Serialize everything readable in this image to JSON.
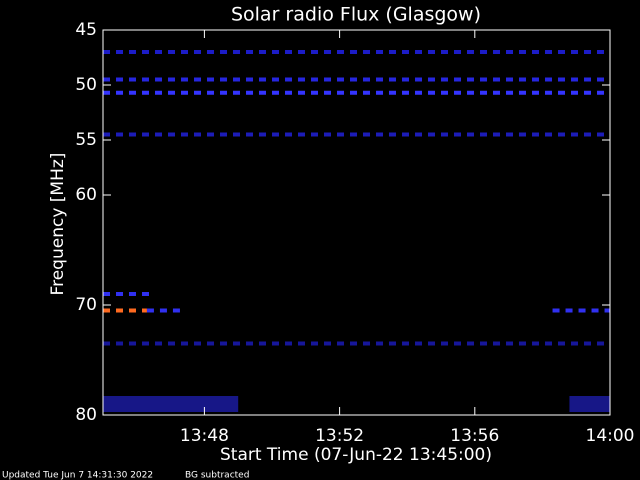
{
  "chart_data": {
    "type": "spectrogram",
    "title": "Solar radio Flux (Glasgow)",
    "x_label": "Start Time (07-Jun-22 13:45:00)",
    "y_label": "Frequency [MHz]",
    "xlim": [
      0,
      15
    ],
    "xticks": [
      {
        "value": 3,
        "label": "13:48"
      },
      {
        "value": 7,
        "label": "13:52"
      },
      {
        "value": 11,
        "label": "13:56"
      },
      {
        "value": 15,
        "label": "14:00"
      }
    ],
    "ylim": [
      80,
      45
    ],
    "yticks": [
      45,
      50,
      55,
      60,
      70,
      80
    ],
    "features": [
      {
        "y": 47,
        "x": [
          0,
          15
        ],
        "color": "#1c1cc8"
      },
      {
        "y": 49.5,
        "x": [
          0,
          15
        ],
        "color": "#2626e0"
      },
      {
        "y": 50.7,
        "x": [
          0,
          15
        ],
        "color": "#3434ff"
      },
      {
        "y": 54.5,
        "x": [
          0,
          15
        ],
        "color": "#1c1cb8"
      },
      {
        "y": 69,
        "x": [
          0,
          1.5
        ],
        "color": "#3030f0"
      },
      {
        "y": 70.5,
        "x": [
          0,
          1.3
        ],
        "color": "#ff6a20"
      },
      {
        "y": 70.5,
        "x": [
          1.3,
          2.3
        ],
        "color": "#3030f0"
      },
      {
        "y": 70.5,
        "x": [
          13.3,
          15
        ],
        "color": "#3030f0"
      },
      {
        "y": 73.5,
        "x": [
          0,
          15
        ],
        "color": "#16169a"
      },
      {
        "y": 79,
        "x": [
          0,
          4
        ],
        "color": "#2222c0"
      },
      {
        "y": 79,
        "x": [
          13.8,
          15
        ],
        "color": "#2222c0"
      }
    ],
    "footer": "Updated Tue Jun  7 14:31:30 2022",
    "footer_note": "BG subtracted"
  }
}
